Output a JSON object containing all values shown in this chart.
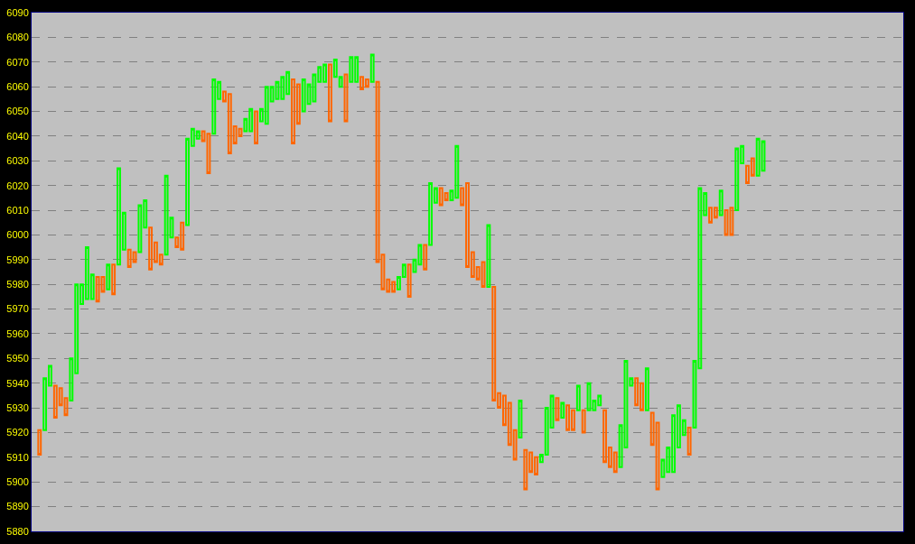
{
  "chart_data": {
    "type": "candlestick",
    "colors": [
      null,
      "#ff6600",
      "#00ff00",
      "#00ff00",
      "#ff6600",
      "#ff6600",
      "#ff6600",
      "#00ff00",
      "#00ff00",
      "#00ff00",
      "#00ff00",
      "#00ff00",
      "#ff6600",
      "#ff6600",
      "#00ff00",
      "#ff6600",
      "#00ff00",
      "#00ff00",
      "#ff6600",
      "#ff6600",
      "#00ff00",
      "#00ff00",
      "#ff6600",
      "#ff6600",
      "#ff6600",
      "#00ff00",
      "#00ff00",
      "#ff6600",
      "#ff6600",
      "#00ff00",
      "#00ff00",
      "#00ff00",
      "#ff6600",
      "#ff6600",
      "#00ff00",
      "#00ff00",
      "#ff6600",
      "#ff6600",
      "#ff6600",
      "#ff6600",
      "#00ff00",
      "#00ff00",
      "#ff6600",
      "#00ff00",
      "#00ff00",
      "#00ff00",
      "#00ff00",
      "#00ff00",
      "#00ff00",
      "#ff6600",
      "#ff6600",
      "#00ff00",
      "#00ff00",
      "#00ff00",
      "#00ff00",
      "#00ff00",
      "#ff6600",
      "#00ff00",
      "#00ff00",
      "#ff6600",
      "#00ff00",
      "#00ff00",
      "#ff6600",
      "#ff6600",
      "#00ff00",
      "#ff6600",
      "#ff6600",
      "#ff6600",
      "#ff6600",
      "#00ff00",
      "#00ff00",
      "#ff6600",
      "#00ff00",
      "#00ff00",
      "#ff6600",
      "#00ff00",
      "#00ff00",
      "#ff6600",
      "#ff6600",
      "#00ff00",
      "#00ff00",
      "#ff6600",
      "#ff6600",
      "#ff6600",
      "#ff6600",
      "#ff6600",
      "#00ff00",
      "#ff6600",
      "#ff6600",
      "#ff6600",
      "#ff6600",
      "#ff6600",
      "#00ff00",
      "#ff6600",
      "#ff6600",
      "#ff6600",
      "#00ff00",
      "#00ff00",
      "#00ff00",
      "#ff6600",
      "#00ff00",
      "#ff6600",
      "#ff6600",
      "#00ff00",
      "#ff6600",
      "#00ff00",
      "#00ff00",
      "#00ff00",
      "#ff6600",
      "#ff6600",
      "#ff6600",
      "#00ff00",
      "#00ff00",
      "#00ff00",
      "#ff6600",
      "#ff6600",
      "#00ff00",
      "#ff6600",
      "#ff6600",
      "#00ff00",
      "#00ff00",
      "#00ff00",
      "#00ff00",
      "#00ff00",
      "#ff6600",
      "#00ff00",
      "#00ff00",
      "#00ff00",
      "#ff6600",
      "#ff6600",
      "#00ff00",
      "#ff6600",
      "#ff6600",
      "#00ff00",
      "#00ff00",
      "#ff6600",
      "#ff6600",
      "#00ff00",
      "#00ff00",
      null,
      null,
      null,
      null,
      null,
      null,
      null,
      null,
      null,
      null,
      null,
      null,
      null,
      null,
      null,
      null,
      null,
      null,
      null,
      null,
      null,
      null,
      null,
      null,
      null,
      null
    ],
    "ylim": [
      5880,
      6090
    ],
    "yticks": [
      5880,
      5890,
      5900,
      5910,
      5920,
      5930,
      5940,
      5950,
      5960,
      5970,
      5980,
      5990,
      6000,
      6010,
      6020,
      6030,
      6040,
      6050,
      6060,
      6070,
      6080,
      6090
    ],
    "grid": "y",
    "line_style": "dashed",
    "tick_labels": "y",
    "categories": [
      null,
      null,
      null,
      null,
      null,
      null,
      null,
      null,
      null,
      null,
      null,
      null,
      null,
      null,
      null,
      null,
      null,
      null,
      null,
      null,
      null,
      null,
      null,
      null,
      null,
      null,
      null,
      null,
      null,
      null,
      null,
      null,
      null,
      null,
      null,
      null,
      null,
      null,
      null,
      null,
      null,
      null,
      null,
      null,
      null,
      null,
      null,
      null,
      null,
      null,
      null,
      null,
      null,
      null,
      null,
      null,
      null,
      null,
      null,
      null,
      null,
      null,
      null,
      null,
      null,
      null,
      null,
      null,
      null,
      null,
      null,
      null,
      null,
      null,
      null,
      null,
      null,
      null,
      null,
      null,
      null,
      null,
      null,
      null,
      null,
      null,
      null,
      null,
      null,
      null,
      null,
      null,
      null,
      null,
      null,
      null,
      null,
      null,
      null,
      null,
      null,
      null,
      null,
      null,
      null,
      null,
      null,
      null,
      null,
      null,
      null,
      null,
      null,
      null,
      null,
      null,
      null,
      null,
      null,
      null,
      null,
      null,
      null,
      null,
      null,
      null,
      null,
      null,
      null,
      null,
      null,
      null,
      null,
      null,
      null,
      null,
      null,
      null,
      null,
      null,
      null,
      null,
      null,
      null,
      null,
      null,
      null,
      null,
      null,
      null,
      null,
      null,
      null,
      null,
      null,
      null,
      null,
      null,
      null,
      null,
      null,
      null,
      null,
      null,
      null
    ],
    "ohlc": [
      null,
      [
        5921,
        5921,
        5911,
        5911
      ],
      [
        5921,
        5942,
        5921,
        5942
      ],
      [
        5939,
        5947,
        5939,
        5947
      ],
      [
        5939,
        5939,
        5926,
        5926
      ],
      [
        5938,
        5938,
        5931,
        5931
      ],
      [
        5934,
        5934,
        5927,
        5927
      ],
      [
        5933,
        5950,
        5933,
        5950
      ],
      [
        5944,
        5980,
        5944,
        5980
      ],
      [
        5972,
        5980,
        5972,
        5980
      ],
      [
        5974,
        5995,
        5974,
        5995
      ],
      [
        5974,
        5984,
        5974,
        5984
      ],
      [
        5983,
        5983,
        5973,
        5973
      ],
      [
        5983,
        5983,
        5977,
        5977
      ],
      [
        5978,
        5988,
        5978,
        5988
      ],
      [
        5988,
        5988,
        5976,
        5976
      ],
      [
        5988,
        6027,
        5988,
        6027
      ],
      [
        5994,
        6009,
        5994,
        6009
      ],
      [
        5994,
        5994,
        5987,
        5987
      ],
      [
        5993,
        5993,
        5989,
        5989
      ],
      [
        5993,
        6012,
        5993,
        6012
      ],
      [
        6003,
        6014,
        6003,
        6014
      ],
      [
        6003,
        6003,
        5986,
        5986
      ],
      [
        5997,
        5997,
        5989,
        5989
      ],
      [
        5992,
        5992,
        5988,
        5988
      ],
      [
        5992,
        6024,
        5992,
        6024
      ],
      [
        5999,
        6007,
        5999,
        6007
      ],
      [
        5999,
        5999,
        5995,
        5995
      ],
      [
        6005,
        6005,
        5994,
        5994
      ],
      [
        6004,
        6039,
        6004,
        6039
      ],
      [
        6036,
        6043,
        6036,
        6043
      ],
      [
        6039,
        6042,
        6039,
        6042
      ],
      [
        6042,
        6042,
        6038,
        6038
      ],
      [
        6041,
        6041,
        6025,
        6025
      ],
      [
        6041,
        6063,
        6041,
        6063
      ],
      [
        6055,
        6062,
        6055,
        6062
      ],
      [
        6058,
        6058,
        6054,
        6054
      ],
      [
        6057,
        6057,
        6033,
        6033
      ],
      [
        6044,
        6044,
        6037,
        6037
      ],
      [
        6043,
        6043,
        6040,
        6040
      ],
      [
        6042,
        6047,
        6042,
        6047
      ],
      [
        6042,
        6051,
        6042,
        6051
      ],
      [
        6050,
        6050,
        6037,
        6037
      ],
      [
        6046,
        6051,
        6046,
        6051
      ],
      [
        6045,
        6060,
        6045,
        6060
      ],
      [
        6054,
        6060,
        6054,
        6060
      ],
      [
        6055,
        6062,
        6055,
        6062
      ],
      [
        6055,
        6064,
        6055,
        6064
      ],
      [
        6057,
        6066,
        6057,
        6066
      ],
      [
        6063,
        6063,
        6037,
        6037
      ],
      [
        6061,
        6061,
        6045,
        6045
      ],
      [
        6050,
        6063,
        6050,
        6063
      ],
      [
        6053,
        6061,
        6053,
        6061
      ],
      [
        6054,
        6065,
        6054,
        6065
      ],
      [
        6062,
        6068,
        6062,
        6068
      ],
      [
        6062,
        6069,
        6062,
        6069
      ],
      [
        6069,
        6069,
        6046,
        6046
      ],
      [
        6064,
        6071,
        6064,
        6071
      ],
      [
        6060,
        6064,
        6060,
        6064
      ],
      [
        6065,
        6065,
        6046,
        6046
      ],
      [
        6062,
        6072,
        6062,
        6072
      ],
      [
        6062,
        6072,
        6062,
        6072
      ],
      [
        6064,
        6064,
        6059,
        6059
      ],
      [
        6063,
        6063,
        6060,
        6060
      ],
      [
        6062,
        6073,
        6062,
        6073
      ],
      [
        6062,
        6062,
        5989,
        5989
      ],
      [
        5992,
        5992,
        5978,
        5978
      ],
      [
        5982,
        5982,
        5977,
        5977
      ],
      [
        5981,
        5981,
        5977,
        5977
      ],
      [
        5978,
        5983,
        5978,
        5983
      ],
      [
        5983,
        5988,
        5983,
        5988
      ],
      [
        5988,
        5988,
        5975,
        5975
      ],
      [
        5985,
        5990,
        5985,
        5990
      ],
      [
        5988,
        5996,
        5988,
        5996
      ],
      [
        5996,
        5996,
        5986,
        5986
      ],
      [
        5996,
        6021,
        5996,
        6021
      ],
      [
        6013,
        6019,
        6013,
        6019
      ],
      [
        6019,
        6019,
        6012,
        6012
      ],
      [
        6017,
        6017,
        6014,
        6014
      ],
      [
        6014,
        6018,
        6014,
        6018
      ],
      [
        6015,
        6036,
        6015,
        6036
      ],
      [
        6019,
        6019,
        6012,
        6012
      ],
      [
        6021,
        6021,
        5987,
        5987
      ],
      [
        5993,
        5993,
        5983,
        5983
      ],
      [
        5987,
        5987,
        5982,
        5982
      ],
      [
        5989,
        5989,
        5979,
        5979
      ],
      [
        5979,
        6004,
        5979,
        6004
      ],
      [
        5979,
        5979,
        5933,
        5933
      ],
      [
        5936,
        5936,
        5930,
        5930
      ],
      [
        5935,
        5935,
        5923,
        5923
      ],
      [
        5932,
        5932,
        5915,
        5915
      ],
      [
        5921,
        5921,
        5909,
        5909
      ],
      [
        5918,
        5933,
        5918,
        5933
      ],
      [
        5913,
        5913,
        5897,
        5897
      ],
      [
        5912,
        5912,
        5904,
        5904
      ],
      [
        5910,
        5910,
        5903,
        5903
      ],
      [
        5908,
        5911,
        5908,
        5911
      ],
      [
        5911,
        5930,
        5911,
        5930
      ],
      [
        5922,
        5935,
        5922,
        5935
      ],
      [
        5934,
        5934,
        5925,
        5925
      ],
      [
        5926,
        5932,
        5926,
        5932
      ],
      [
        5931,
        5931,
        5921,
        5921
      ],
      [
        5929,
        5929,
        5921,
        5921
      ],
      [
        5929,
        5939,
        5929,
        5939
      ],
      [
        5929,
        5929,
        5920,
        5920
      ],
      [
        5929,
        5940,
        5929,
        5940
      ],
      [
        5929,
        5933,
        5929,
        5933
      ],
      [
        5931,
        5935,
        5931,
        5935
      ],
      [
        5929,
        5929,
        5908,
        5908
      ],
      [
        5914,
        5914,
        5906,
        5906
      ],
      [
        5912,
        5912,
        5904,
        5904
      ],
      [
        5906,
        5923,
        5906,
        5923
      ],
      [
        5914,
        5949,
        5914,
        5949
      ],
      [
        5939,
        5942,
        5939,
        5942
      ],
      [
        5942,
        5942,
        5931,
        5931
      ],
      [
        5940,
        5940,
        5929,
        5929
      ],
      [
        5929,
        5946,
        5929,
        5946
      ],
      [
        5928,
        5928,
        5915,
        5915
      ],
      [
        5924,
        5924,
        5897,
        5897
      ],
      [
        5902,
        5909,
        5902,
        5909
      ],
      [
        5904,
        5914,
        5904,
        5914
      ],
      [
        5904,
        5927,
        5904,
        5927
      ],
      [
        5914,
        5931,
        5914,
        5931
      ],
      [
        5919,
        5925,
        5919,
        5925
      ],
      [
        5922,
        5922,
        5911,
        5911
      ],
      [
        5922,
        5949,
        5922,
        5949
      ],
      [
        5946,
        6019,
        5946,
        6019
      ],
      [
        6008,
        6017,
        6008,
        6017
      ],
      [
        6011,
        6011,
        6005,
        6005
      ],
      [
        6011,
        6011,
        6007,
        6007
      ],
      [
        6008,
        6018,
        6008,
        6018
      ],
      [
        6010,
        6010,
        6000,
        6000
      ],
      [
        6011,
        6011,
        6000,
        6000
      ],
      [
        6010,
        6035,
        6010,
        6035
      ],
      [
        6029,
        6036,
        6029,
        6036
      ],
      [
        6028,
        6028,
        6021,
        6021
      ],
      [
        6031,
        6031,
        6024,
        6024
      ],
      [
        6024,
        6039,
        6024,
        6039
      ],
      [
        6026,
        6038,
        6026,
        6038
      ],
      null,
      null,
      null,
      null,
      null,
      null,
      null,
      null,
      null,
      null,
      null,
      null,
      null,
      null,
      null,
      null,
      null,
      null,
      null,
      null,
      null,
      null,
      null,
      null,
      null,
      null
    ]
  }
}
